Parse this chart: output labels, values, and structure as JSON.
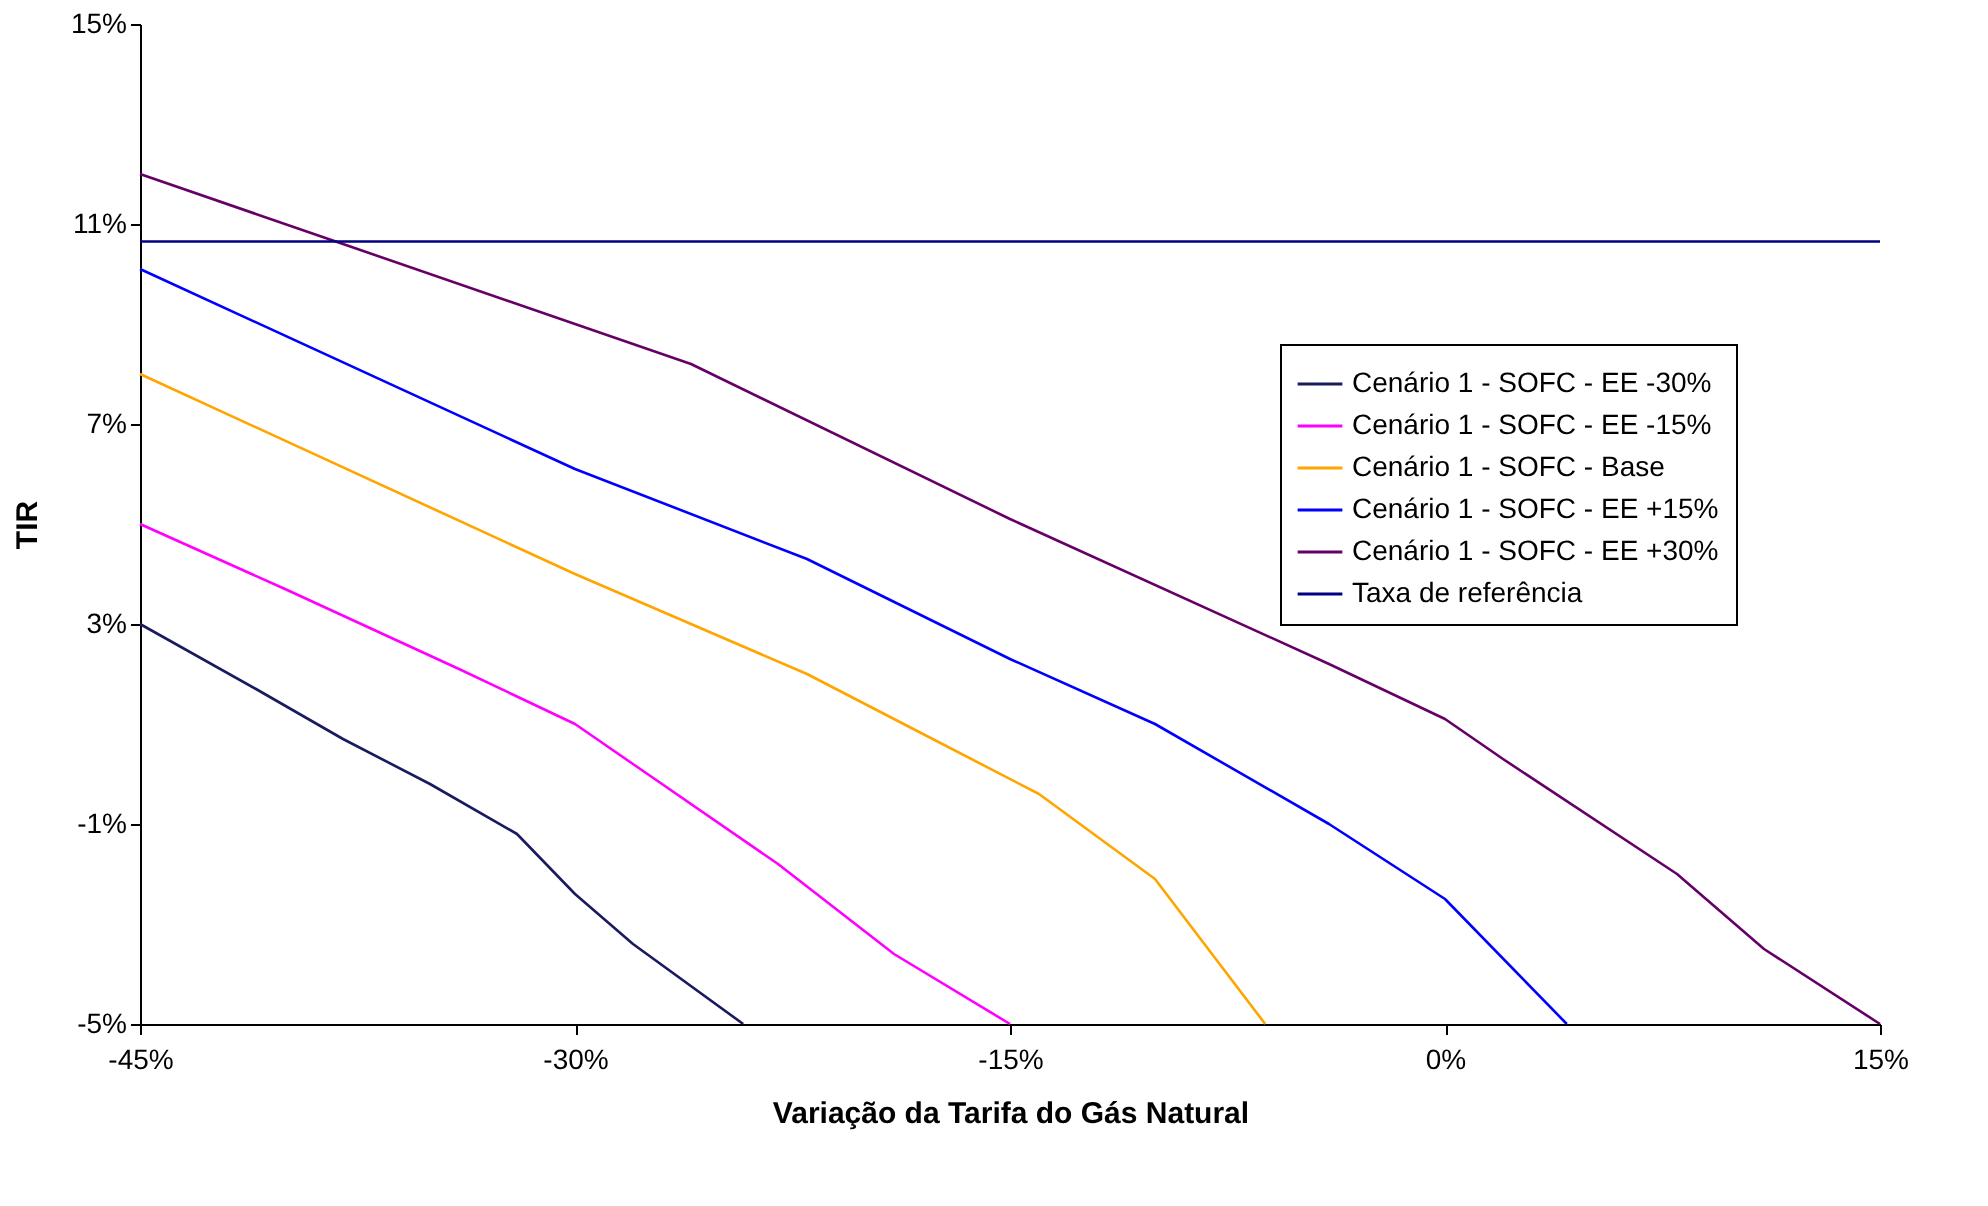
{
  "chart_data": {
    "type": "line",
    "xlabel": "Variação da Tarifa do Gás Natural",
    "ylabel": "TIR",
    "xlim": [
      -45,
      15
    ],
    "ylim": [
      -5,
      15
    ],
    "xticks": [
      {
        "value": -45,
        "label": "-45%"
      },
      {
        "value": -30,
        "label": "-30%"
      },
      {
        "value": -15,
        "label": "-15%"
      },
      {
        "value": 0,
        "label": "0%"
      },
      {
        "value": 15,
        "label": "15%"
      }
    ],
    "yticks": [
      {
        "value": -5,
        "label": "-5%"
      },
      {
        "value": -1,
        "label": "-1%"
      },
      {
        "value": 3,
        "label": "3%"
      },
      {
        "value": 7,
        "label": "7%"
      },
      {
        "value": 11,
        "label": "11%"
      },
      {
        "value": 15,
        "label": "15%"
      }
    ],
    "grid": false,
    "legend": "right",
    "marker": "none",
    "line_style": "solid",
    "series": [
      {
        "name": "Cenário 1 - SOFC - EE -30%",
        "color": "#1a1a5e",
        "x": [
          -45,
          -41,
          -38,
          -35,
          -32,
          -30,
          -28,
          -24.2
        ],
        "values": [
          3.0,
          1.7,
          0.7,
          -0.2,
          -1.2,
          -2.4,
          -3.4,
          -5
        ]
      },
      {
        "name": "Cenário 1 - SOFC - EE -15%",
        "color": "#ff00ff",
        "x": [
          -45,
          -40,
          -34,
          -30,
          -28,
          -23,
          -19,
          -15
        ],
        "values": [
          5.0,
          3.7,
          2.1,
          1.0,
          0.2,
          -1.8,
          -3.6,
          -5
        ]
      },
      {
        "name": "Cenário 1 - SOFC - Base",
        "color": "#ffa500",
        "x": [
          -45,
          -30,
          -22,
          -18,
          -14,
          -10,
          -6.2
        ],
        "values": [
          8.0,
          4.0,
          2.0,
          0.8,
          -0.4,
          -2.1,
          -5
        ]
      },
      {
        "name": "Cenário 1 - SOFC - EE +15%",
        "color": "#0000ff",
        "x": [
          -45,
          -30,
          -22,
          -15,
          -10,
          -4,
          0,
          4.2
        ],
        "values": [
          10.1,
          6.1,
          4.3,
          2.3,
          1.0,
          -1.0,
          -2.5,
          -5
        ]
      },
      {
        "name": "Cenário 1 - SOFC - EE +30%",
        "color": "#660066",
        "x": [
          -45,
          -38,
          -30,
          -26,
          -15,
          -4,
          0,
          2,
          8,
          11,
          15
        ],
        "values": [
          12.0,
          10.6,
          9.0,
          8.2,
          5.1,
          2.2,
          1.1,
          0.3,
          -2.0,
          -3.5,
          -5
        ]
      }
    ],
    "ref_lines": [
      {
        "axis": "y",
        "value": 10.65,
        "label": "Taxa de referência",
        "color": "#000080",
        "line_style": "solid"
      }
    ]
  }
}
